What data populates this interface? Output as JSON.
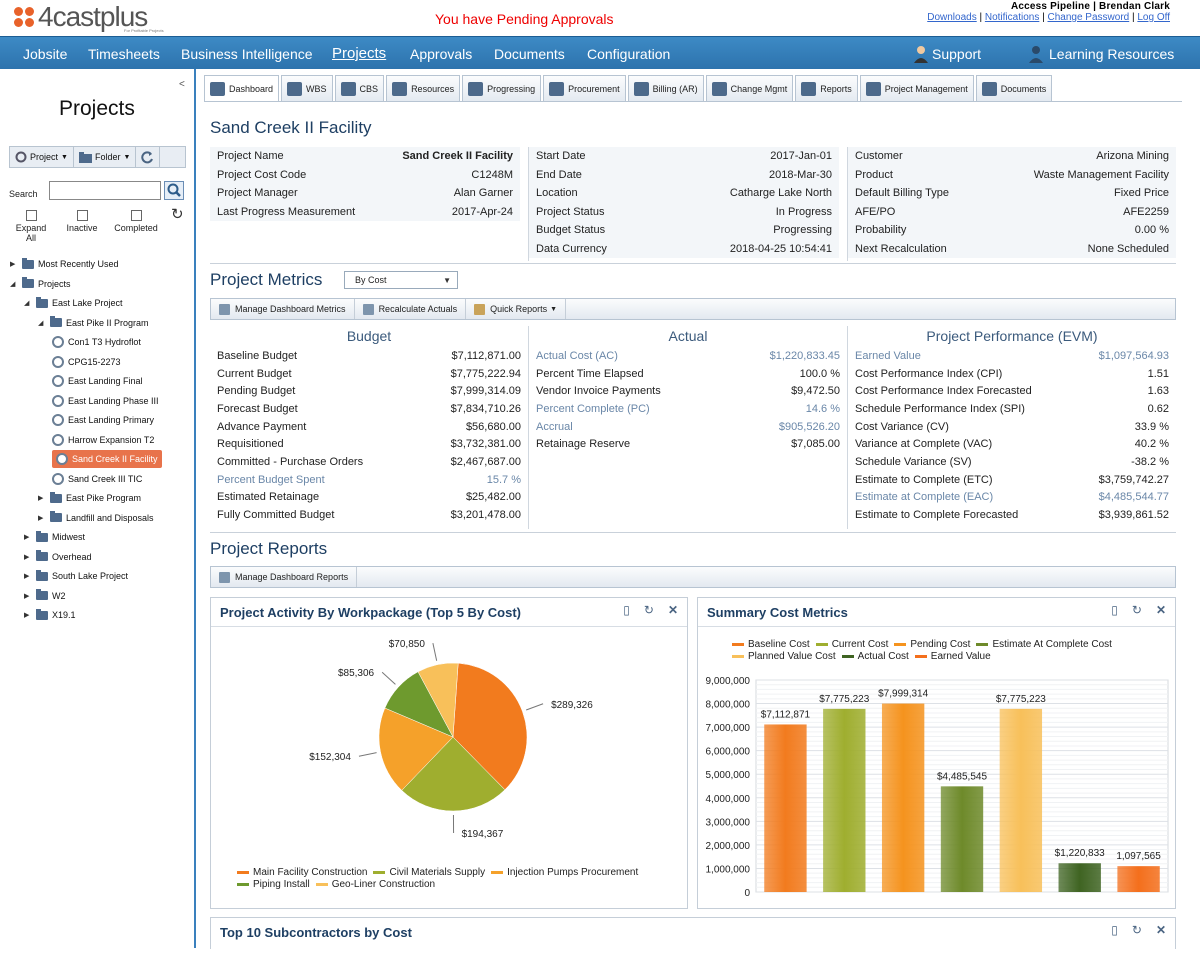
{
  "brand": {
    "name": "4castplus",
    "tagline": "For Profitable Projects"
  },
  "alert": "You have Pending Approvals",
  "account": {
    "user": "Access Pipeline | Brendan Clark",
    "links": [
      "Downloads",
      "Notifications",
      "Change Password",
      "Log Off"
    ]
  },
  "nav": {
    "items": [
      "Jobsite",
      "Timesheets",
      "Business Intelligence",
      "Projects",
      "Approvals",
      "Documents",
      "Configuration"
    ],
    "active": "Projects",
    "support": "Support",
    "learning": "Learning Resources"
  },
  "sidebar": {
    "title": "Projects",
    "collapse": "<",
    "tools": {
      "project": "Project",
      "folder": "Folder"
    },
    "search_label": "Search",
    "search_value": "",
    "checks": {
      "expand": "Expand All",
      "inactive": "Inactive",
      "completed": "Completed"
    },
    "tree": [
      {
        "label": "Most Recently Used",
        "type": "folder",
        "depth": 0,
        "toggle": "▶"
      },
      {
        "label": "Projects",
        "type": "folder",
        "depth": 0,
        "toggle": "◢"
      },
      {
        "label": "East Lake Project",
        "type": "folder",
        "depth": 1,
        "toggle": "◢"
      },
      {
        "label": "East Pike II Program",
        "type": "folder",
        "depth": 2,
        "toggle": "◢"
      },
      {
        "label": "Con1 T3 Hydroflot",
        "type": "project",
        "depth": 3,
        "toggle": ""
      },
      {
        "label": "CPG15-2273",
        "type": "project",
        "depth": 3,
        "toggle": ""
      },
      {
        "label": "East Landing Final",
        "type": "project",
        "depth": 3,
        "toggle": ""
      },
      {
        "label": "East Landing Phase III",
        "type": "project",
        "depth": 3,
        "toggle": ""
      },
      {
        "label": "East Landing Primary",
        "type": "project",
        "depth": 3,
        "toggle": ""
      },
      {
        "label": "Harrow Expansion T2",
        "type": "project",
        "depth": 3,
        "toggle": ""
      },
      {
        "label": "Sand Creek II Facility",
        "type": "project",
        "depth": 3,
        "toggle": "",
        "selected": true
      },
      {
        "label": "Sand Creek III TIC",
        "type": "project",
        "depth": 3,
        "toggle": ""
      },
      {
        "label": "East Pike Program",
        "type": "folder",
        "depth": 2,
        "toggle": "▶"
      },
      {
        "label": "Landfill and Disposals",
        "type": "folder",
        "depth": 2,
        "toggle": "▶"
      },
      {
        "label": "Midwest",
        "type": "folder",
        "depth": 1,
        "toggle": "▶"
      },
      {
        "label": "Overhead",
        "type": "folder",
        "depth": 1,
        "toggle": "▶"
      },
      {
        "label": "South Lake Project",
        "type": "folder",
        "depth": 1,
        "toggle": "▶"
      },
      {
        "label": "W2",
        "type": "folder",
        "depth": 1,
        "toggle": "▶"
      },
      {
        "label": "X19.1",
        "type": "folder",
        "depth": 1,
        "toggle": "▶"
      }
    ]
  },
  "tabs": [
    "Dashboard",
    "WBS",
    "CBS",
    "Resources",
    "Progressing",
    "Procurement",
    "Billing (AR)",
    "Change Mgmt",
    "Reports",
    "Project Management",
    "Documents"
  ],
  "project": {
    "title": "Sand Creek II Facility",
    "info_cols": [
      [
        [
          "Project Name",
          "Sand Creek II Facility"
        ],
        [
          "Project Cost Code",
          "C1248M"
        ],
        [
          "Project Manager",
          "Alan Garner"
        ],
        [
          "Last Progress Measurement",
          "2017-Apr-24"
        ]
      ],
      [
        [
          "Start Date",
          "2017-Jan-01"
        ],
        [
          "End Date",
          "2018-Mar-30"
        ],
        [
          "Location",
          "Catharge Lake North"
        ],
        [
          "Project Status",
          "In Progress"
        ],
        [
          "Budget Status",
          "Progressing"
        ],
        [
          "Data Currency",
          "2018-04-25 10:54:41"
        ]
      ],
      [
        [
          "Customer",
          "Arizona Mining"
        ],
        [
          "Product",
          "Waste Management Facility"
        ],
        [
          "Default Billing Type",
          "Fixed Price"
        ],
        [
          "AFE/PO",
          "AFE2259"
        ],
        [
          "Probability",
          "0.00 %"
        ],
        [
          "Next Recalculation",
          "None Scheduled"
        ]
      ]
    ]
  },
  "metrics": {
    "title": "Project Metrics",
    "mode": "By Cost",
    "toolbar": [
      "Manage Dashboard Metrics",
      "Recalculate Actuals",
      "Quick Reports"
    ],
    "budget": {
      "title": "Budget",
      "rows": [
        [
          "Baseline Budget",
          "$7,112,871.00"
        ],
        [
          "Current Budget",
          "$7,775,222.94"
        ],
        [
          "Pending Budget",
          "$7,999,314.09"
        ],
        [
          "Forecast Budget",
          "$7,834,710.26"
        ],
        [
          "Advance Payment",
          "$56,680.00"
        ],
        [
          "Requisitioned",
          "$3,732,381.00"
        ],
        [
          "Committed - Purchase Orders",
          "$2,467,687.00"
        ],
        [
          "Percent Budget Spent",
          "15.7 %"
        ],
        [
          "Estimated Retainage",
          "$25,482.00"
        ],
        [
          "Fully Committed Budget",
          "$3,201,478.00"
        ]
      ],
      "links": [
        7
      ]
    },
    "actual": {
      "title": "Actual",
      "rows": [
        [
          "Actual Cost (AC)",
          "$1,220,833.45"
        ],
        [
          "Percent Time Elapsed",
          "100.0 %"
        ],
        [
          "Vendor Invoice Payments",
          "$9,472.50"
        ],
        [
          "Percent Complete (PC)",
          "14.6 %"
        ],
        [
          "Accrual",
          "$905,526.20"
        ],
        [
          "Retainage Reserve",
          "$7,085.00"
        ]
      ],
      "links": [
        0,
        3,
        4
      ]
    },
    "evm": {
      "title": "Project Performance (EVM)",
      "rows": [
        [
          "Earned Value",
          "$1,097,564.93"
        ],
        [
          "Cost Performance Index (CPI)",
          "1.51"
        ],
        [
          "Cost Performance Index Forecasted",
          "1.63"
        ],
        [
          "Schedule Performance Index (SPI)",
          "0.62"
        ],
        [
          "Cost Variance (CV)",
          "33.9 %"
        ],
        [
          "Variance at Complete (VAC)",
          "40.2 %"
        ],
        [
          "Schedule Variance (SV)",
          "-38.2 %"
        ],
        [
          "Estimate to Complete (ETC)",
          "$3,759,742.27"
        ],
        [
          "Estimate at Complete (EAC)",
          "$4,485,544.77"
        ],
        [
          "Estimate to Complete Forecasted",
          "$3,939,861.52"
        ]
      ],
      "links": [
        0,
        8
      ]
    }
  },
  "reports": {
    "title": "Project Reports",
    "toolbar": [
      "Manage Dashboard Reports"
    ],
    "bottom_title": "Top 10 Subcontractors by Cost"
  },
  "colors": {
    "nav": "#2f77b2",
    "accent": "#e8734b",
    "title": "#1e3f63"
  },
  "chart_data": [
    {
      "type": "pie",
      "title": "Project Activity By Workpackage (Top 5 By Cost)",
      "categories": [
        "Main Facility Construction",
        "Civil Materials Supply",
        "Injection Pumps Procurement",
        "Piping Install",
        "Geo-Liner Construction"
      ],
      "values": [
        289326,
        194367,
        152304,
        85306,
        70850
      ],
      "labels": [
        "$289,326",
        "$194,367",
        "$152,304",
        "$85,306",
        "$70,850"
      ],
      "colors": [
        "#f27b1e",
        "#9fae2f",
        "#f5a12a",
        "#6e9a2e",
        "#f8c05a"
      ],
      "legend": "bottom"
    },
    {
      "type": "bar",
      "title": "Summary Cost Metrics",
      "categories": [
        "Baseline Cost",
        "Current Cost",
        "Pending Cost",
        "Estimate At Complete Cost",
        "Planned Value Cost",
        "Actual Cost",
        "Earned Value"
      ],
      "values": [
        7112871,
        7775223,
        7999314,
        4485545,
        7775223,
        1220833,
        1097565
      ],
      "labels": [
        "$7,112,871",
        "$7,775,223",
        "$7,999,314",
        "$4,485,545",
        "$7,775,223",
        "$1,220,833",
        "1,097,565"
      ],
      "colors": [
        "#f27b1e",
        "#9fae2f",
        "#f5931e",
        "#6e8a2a",
        "#f8c05a",
        "#3f6422",
        "#f46f1c"
      ],
      "yticks": [
        "0",
        "1,000,000",
        "2,000,000",
        "3,000,000",
        "4,000,000",
        "5,000,000",
        "6,000,000",
        "7,000,000",
        "8,000,000",
        "9,000,000"
      ],
      "ylim": [
        0,
        9000000
      ],
      "grid": true,
      "legend": "top"
    }
  ]
}
